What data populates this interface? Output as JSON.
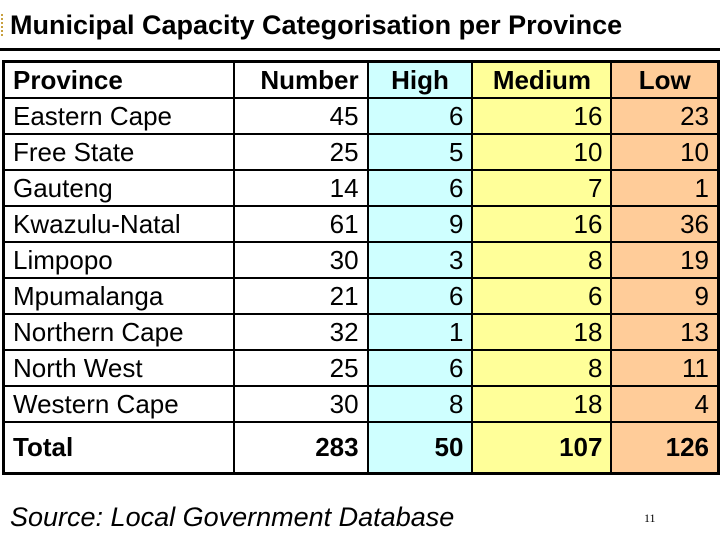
{
  "slide": {
    "title": "Municipal Capacity Categorisation per Province",
    "source": "Source: Local Government Database",
    "page_number": "11"
  },
  "table": {
    "headers": [
      "Province",
      "Number",
      "High",
      "Medium",
      "Low"
    ],
    "rows": [
      [
        "Eastern Cape",
        "45",
        "6",
        "16",
        "23"
      ],
      [
        "Free State",
        "25",
        "5",
        "10",
        "10"
      ],
      [
        "Gauteng",
        "14",
        "6",
        "7",
        "1"
      ],
      [
        "Kwazulu-Natal",
        "61",
        "9",
        "16",
        "36"
      ],
      [
        "Limpopo",
        "30",
        "3",
        "8",
        "19"
      ],
      [
        "Mpumalanga",
        "21",
        "6",
        "6",
        "9"
      ],
      [
        "Northern Cape",
        "32",
        "1",
        "18",
        "13"
      ],
      [
        "North West",
        "25",
        "6",
        "8",
        "11"
      ],
      [
        "Western Cape",
        "30",
        "8",
        "18",
        "4"
      ]
    ],
    "total": [
      "Total",
      "283",
      "50",
      "107",
      "126"
    ]
  },
  "colors": {
    "high_column": "#cfffff",
    "medium_column": "#ffff99",
    "low_column": "#ffcc99"
  }
}
